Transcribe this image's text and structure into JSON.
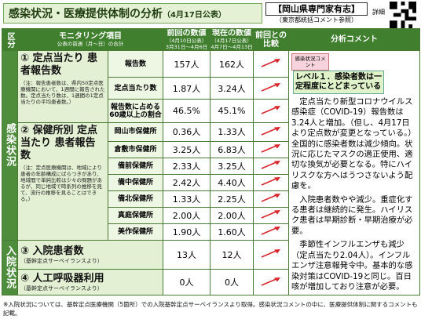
{
  "header": {
    "title": "感染状況・医療提供体制の分析",
    "date": "（4月17日公表）",
    "source": "【岡山県専門家有志】",
    "source_note": "（東京都統括コメント参照）",
    "detail": "詳細"
  },
  "table": {
    "headers": {
      "category": "区分",
      "item": "モニタリング項目",
      "item_note": "公表の前週（月～日）の合計",
      "previous": "前回の数値",
      "previous_date": "（4月10日公表）",
      "previous_period": "3月31日～4月6日",
      "current": "現在の数値",
      "current_date": "（4月17日公表）",
      "current_period": "4月7日～4月13日",
      "compare": "前回との比較",
      "analysis": "分析コメント"
    },
    "sections": [
      "感染状況",
      "入院状況"
    ],
    "items": [
      {
        "title": "① 定点当たり 患者報告数",
        "note": "（注：報告患者数は、県内50定点医療機関において、1週間に報告された数。定点当たり数は、1週間の1定点当たりの平均患者数。）",
        "rows": [
          [
            "報告数",
            "157人",
            "162人"
          ],
          [
            "定点当たり数",
            "1.87人",
            "3.24人"
          ],
          [
            "報告数に占める60歳以上の割合",
            "46.5%",
            "45.1%"
          ]
        ]
      },
      {
        "title": "② 保健所別 定点当たり 患者報告数",
        "note": "（注：定点医療機関は、地域により患者の年齢構成にばらつきがあり、地域間で単純比較は少々の問題があるが、同じ地域で時系列の推移を見て、流行の推移を見ることはできる。）",
        "rows": [
          [
            "岡山市保健所",
            "0.36人",
            "1.33人"
          ],
          [
            "倉敷市保健所",
            "3.25人",
            "6.83人"
          ],
          [
            "備前保健所",
            "2.33人",
            "3.25人"
          ],
          [
            "備中保健所",
            "2.42人",
            "4.40人"
          ],
          [
            "備北保健所",
            "1.33人",
            "2.25人"
          ],
          [
            "真庭保健所",
            "2.00人",
            "2.00人"
          ],
          [
            "美作保健所",
            "1.90人",
            "1.60人"
          ]
        ]
      },
      {
        "title": "③ 入院患者数",
        "note": "（基幹定点サーベイランスより）",
        "previous": "13人",
        "current": "12人"
      },
      {
        "title": "④ 人工呼吸器利用",
        "note": "（基幹定点サーベイランスより）",
        "previous": "0人",
        "current": "0人"
      }
    ],
    "analysis": {
      "label": "感染状況コメント",
      "level": "レベル１．感染者数は一定程度にとどまっている",
      "paragraphs": [
        "定点当たり新型コロナウイルス感染症（COVID-19）報告数は3.24人と増加。（但し、4月17日より定点数が変更となっている。）全国的に感染者数は減少傾向。状況に応じたマスクの適正使用、適切な換気が必要となる。特にハイリスクな方へはうつさないよう配慮を。",
        "入院患者数やや減少。重症化する患者は継続的に発生。ハイリスク患者は早期診断・早期治療が必要。",
        "季節性インフルエンザも減少（定点当たり2.04人）。インフルエンザ注意報発令中。基本的な感染対策はCOVID-19と同じ。百日咳が増加しており注意が必要。"
      ]
    }
  },
  "footer": "※入院状況については、基幹定点医療機関（5箇所）での入院基幹定点サーベイランスより取得。感染状況コメントの中に、医療提供体制に関するコメントも記載。"
}
